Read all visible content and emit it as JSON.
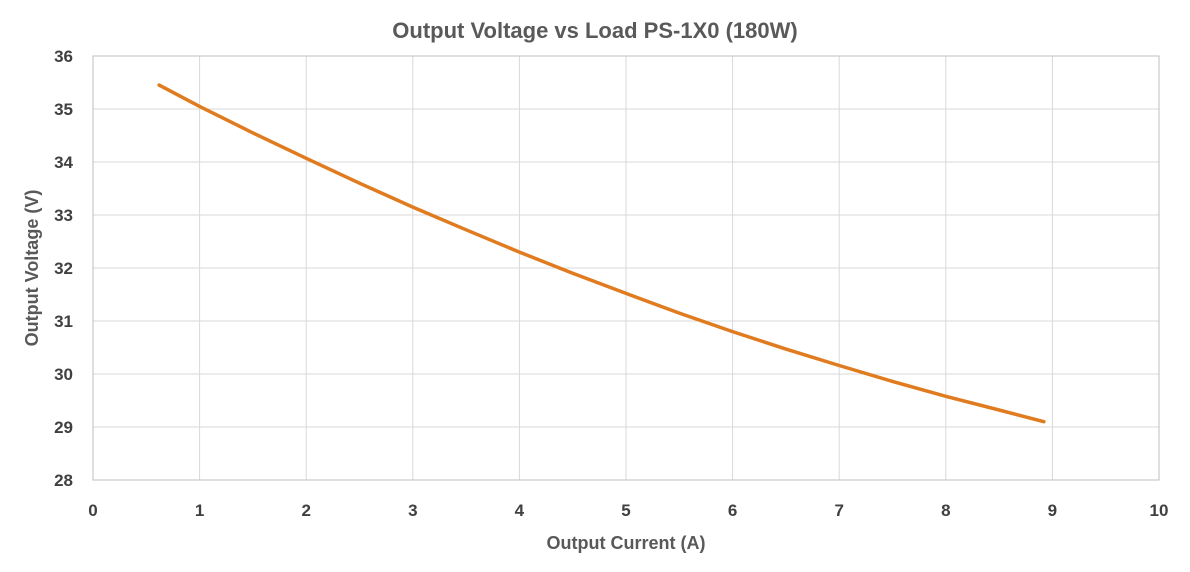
{
  "chart_data": {
    "type": "line",
    "title": "Output Voltage vs Load PS-1X0 (180W)",
    "xlabel": "Output Current (A)",
    "ylabel": "Output Voltage (V)",
    "xlim": [
      0,
      10
    ],
    "ylim": [
      28,
      36
    ],
    "xticks": [
      0,
      1,
      2,
      3,
      4,
      5,
      6,
      7,
      8,
      9,
      10
    ],
    "yticks": [
      28,
      29,
      30,
      31,
      32,
      33,
      34,
      35,
      36
    ],
    "grid": true,
    "legend": "none",
    "series": [
      {
        "color": "#e07b1f",
        "x": [
          0.62,
          1.0,
          1.5,
          2.0,
          2.5,
          3.0,
          3.5,
          4.0,
          4.5,
          5.0,
          5.5,
          6.0,
          6.5,
          7.0,
          7.5,
          8.0,
          8.5,
          8.92
        ],
        "y": [
          35.45,
          35.05,
          34.55,
          34.07,
          33.6,
          33.15,
          32.72,
          32.3,
          31.9,
          31.52,
          31.15,
          30.8,
          30.47,
          30.16,
          29.86,
          29.58,
          29.32,
          29.1
        ]
      }
    ]
  }
}
